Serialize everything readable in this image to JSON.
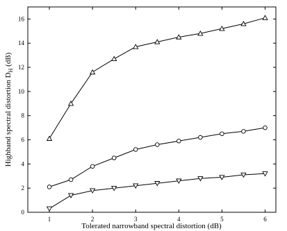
{
  "chart_data": {
    "type": "line",
    "title": "",
    "xlabel": "Tolerated narrowband spectral distortion (dB)",
    "ylabel": "Highband spectral distortion D",
    "ylabel_subscript": "H",
    "ylabel_unit": " (dB)",
    "xlim": [
      0.5,
      6.25
    ],
    "ylim": [
      0,
      17
    ],
    "xticks": [
      1,
      2,
      3,
      4,
      5,
      6
    ],
    "yticks": [
      0,
      2,
      4,
      6,
      8,
      10,
      12,
      14,
      16
    ],
    "grid": false,
    "series": [
      {
        "marker": "triangle-up",
        "x": [
          1,
          1.5,
          2,
          2.5,
          3,
          3.5,
          4,
          4.5,
          5,
          5.5,
          6
        ],
        "y": [
          6.1,
          9.0,
          11.6,
          12.7,
          13.7,
          14.1,
          14.5,
          14.8,
          15.2,
          15.6,
          16.1
        ]
      },
      {
        "marker": "circle",
        "x": [
          1,
          1.5,
          2,
          2.5,
          3,
          3.5,
          4,
          4.5,
          5,
          5.5,
          6
        ],
        "y": [
          2.1,
          2.7,
          3.8,
          4.5,
          5.2,
          5.6,
          5.9,
          6.2,
          6.5,
          6.7,
          7.0
        ]
      },
      {
        "marker": "triangle-down",
        "x": [
          1,
          1.5,
          2,
          2.5,
          3,
          3.5,
          4,
          4.5,
          5,
          5.5,
          6
        ],
        "y": [
          0.3,
          1.4,
          1.8,
          2.0,
          2.2,
          2.4,
          2.6,
          2.8,
          2.9,
          3.1,
          3.2
        ]
      }
    ]
  }
}
